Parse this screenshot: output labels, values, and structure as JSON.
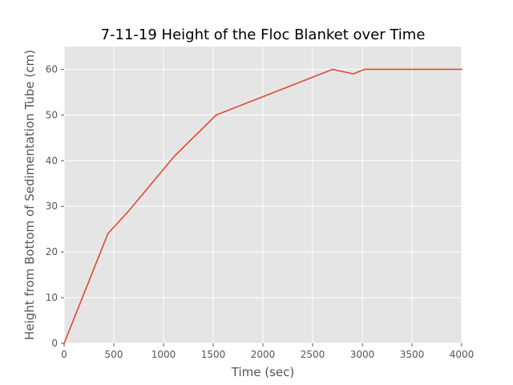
{
  "chart_data": {
    "type": "line",
    "title": "7-11-19 Height of the Floc Blanket over Time",
    "xlabel": "Time (sec)",
    "ylabel": "Height from Bottom of Sedimentation Tube (cm)",
    "xlim": [
      0,
      4000
    ],
    "ylim": [
      0,
      65
    ],
    "xticks": [
      0,
      500,
      1000,
      1500,
      2000,
      2500,
      3000,
      3500,
      4000
    ],
    "yticks": [
      0,
      10,
      20,
      30,
      40,
      50,
      60
    ],
    "grid": true,
    "legend": "none",
    "background_color": "#e5e5e5",
    "series": [
      {
        "color": "#e24a33",
        "x": [
          0,
          440,
          650,
          1110,
          1530,
          2700,
          2910,
          3020,
          4000
        ],
        "y": [
          0,
          24,
          29,
          41,
          50,
          60,
          59,
          60,
          60
        ]
      }
    ]
  }
}
